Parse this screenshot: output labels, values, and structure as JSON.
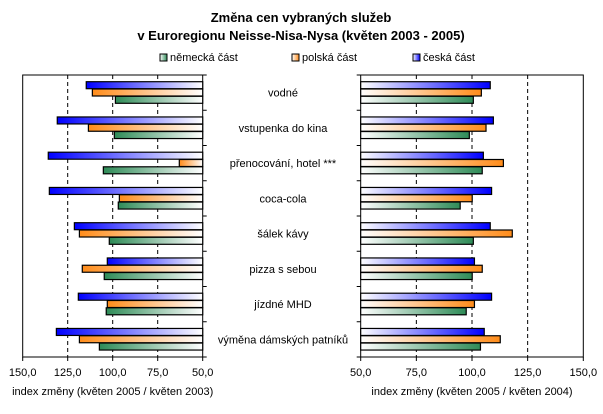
{
  "chart_data": [
    {
      "type": "bar",
      "orientation": "horizontal",
      "reversed_x": true,
      "title": "Změna cen vybraných služeb",
      "subtitle": "v Euroregionu Neisse-Nisa-Nysa (květen 2003 - 2005)",
      "xlabel": "index změny (květen 2005 / květen 2003)",
      "xlim": [
        50,
        150
      ],
      "xticks": [
        "150,0",
        "125,0",
        "100,0",
        "75,0",
        "50,0"
      ],
      "xtick_values": [
        150,
        125,
        100,
        75,
        50
      ],
      "grid": "dashed vertical",
      "categories": [
        "vodné",
        "vstupenka do kina",
        "přenocování, hotel ***",
        "coca-cola",
        "šálek kávy",
        "pizza s sebou",
        "jízdné MHD",
        "výměna dámských patníků"
      ],
      "series": [
        {
          "name": "česká část",
          "color": "#0000ff",
          "values": [
            114.7,
            130.8,
            135.8,
            135.2,
            121.3,
            103.0,
            119.1,
            131.3
          ]
        },
        {
          "name": "polská část",
          "color": "#ff8c1a",
          "values": [
            111.3,
            113.5,
            63.0,
            96.3,
            118.5,
            116.9,
            103.0,
            118.5
          ]
        },
        {
          "name": "německá část",
          "color": "#2e8b57",
          "values": [
            98.5,
            99.1,
            105.2,
            96.9,
            101.9,
            104.7,
            103.6,
            107.4
          ]
        }
      ]
    },
    {
      "type": "bar",
      "orientation": "horizontal",
      "reversed_x": false,
      "xlabel": "index změny (květen 2005 / květen 2004)",
      "xlim": [
        50,
        150
      ],
      "xticks": [
        "50,0",
        "75,0",
        "100,0",
        "125,0",
        "150,0"
      ],
      "xtick_values": [
        50,
        75,
        100,
        125,
        150
      ],
      "grid": "dashed vertical",
      "categories": [
        "vodné",
        "vstupenka do kina",
        "přenocování, hotel ***",
        "coca-cola",
        "šálek kávy",
        "pizza s sebou",
        "jízdné MHD",
        "výměna dámských patníků"
      ],
      "series": [
        {
          "name": "česká část",
          "color": "#0000ff",
          "values": [
            108.2,
            109.6,
            105.1,
            108.8,
            108.2,
            101.1,
            108.8,
            105.5
          ]
        },
        {
          "name": "polská část",
          "color": "#ff8c1a",
          "values": [
            104.2,
            106.3,
            114.1,
            100.1,
            118.1,
            104.6,
            101.1,
            112.7
          ]
        },
        {
          "name": "německá část",
          "color": "#2e8b57",
          "values": [
            100.6,
            98.8,
            104.6,
            94.7,
            100.6,
            100.1,
            97.4,
            103.8
          ]
        }
      ]
    }
  ],
  "legend": [
    {
      "label": "německá část",
      "color": "#2e8b57"
    },
    {
      "label": "polská část",
      "color": "#ff8c1a"
    },
    {
      "label": "česká část",
      "color": "#0000ff"
    }
  ]
}
